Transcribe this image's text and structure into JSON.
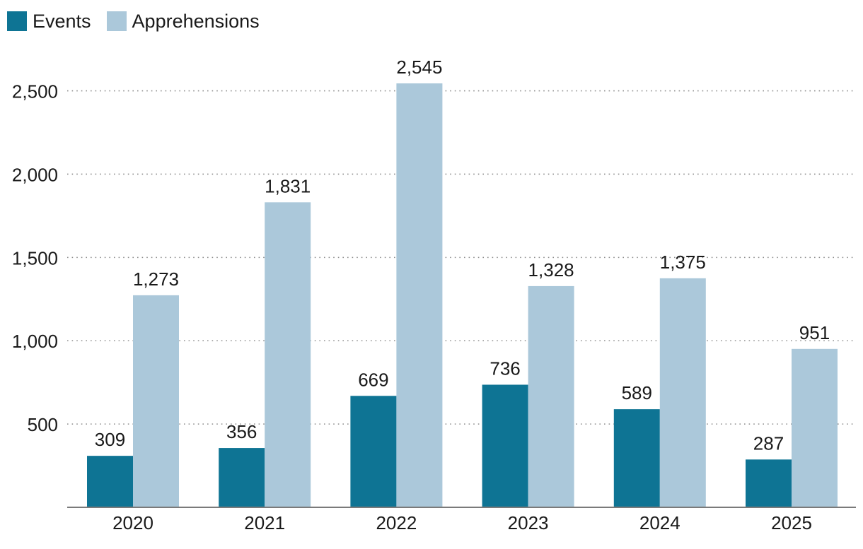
{
  "chart_data": {
    "type": "bar",
    "title": "",
    "xlabel": "",
    "ylabel": "",
    "categories": [
      "2020",
      "2021",
      "2022",
      "2023",
      "2024",
      "2025"
    ],
    "series": [
      {
        "name": "Events",
        "color": "#0e7494",
        "values": [
          309,
          356,
          669,
          736,
          589,
          287
        ],
        "labels": [
          "309",
          "356",
          "669",
          "736",
          "589",
          "287"
        ]
      },
      {
        "name": "Apprehensions",
        "color": "#abc8da",
        "values": [
          1273,
          1831,
          2545,
          1328,
          1375,
          951
        ],
        "labels": [
          "1,273",
          "1,831",
          "2,545",
          "1,328",
          "1,375",
          "951"
        ]
      }
    ],
    "yticks": [
      500,
      1000,
      1500,
      2000,
      2500
    ],
    "ytick_labels": [
      "500",
      "1,000",
      "1,500",
      "2,000",
      "2,500"
    ],
    "ylim": [
      0,
      2700
    ],
    "grid": true,
    "legend_position": "top-left"
  }
}
